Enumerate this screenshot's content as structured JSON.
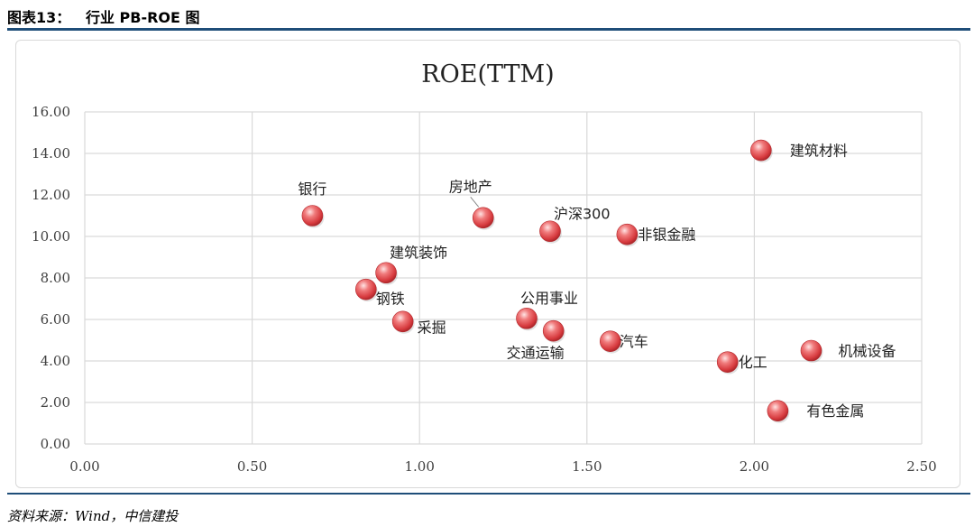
{
  "header": {
    "title": "图表13：   行业 PB-ROE 图"
  },
  "footer": {
    "source": "资料来源：Wind，中信建投"
  },
  "chart_data": {
    "type": "scatter",
    "title": "ROE(TTM)",
    "xlabel": "",
    "ylabel": "",
    "xlim": [
      0,
      2.5
    ],
    "ylim": [
      0,
      16
    ],
    "x_ticks": [
      "0.00",
      "0.50",
      "1.00",
      "1.50",
      "2.00",
      "2.50"
    ],
    "y_ticks": [
      "0.00",
      "2.00",
      "4.00",
      "6.00",
      "8.00",
      "10.00",
      "12.00",
      "14.00",
      "16.00"
    ],
    "grid": true,
    "marker_color": "#e8585a",
    "points": [
      {
        "label": "银行",
        "x": 0.68,
        "y": 11.0
      },
      {
        "label": "房地产",
        "x": 1.19,
        "y": 10.9
      },
      {
        "label": "沪深300",
        "x": 1.39,
        "y": 10.25
      },
      {
        "label": "非银金融",
        "x": 1.62,
        "y": 10.1
      },
      {
        "label": "建筑材料",
        "x": 2.02,
        "y": 14.15
      },
      {
        "label": "建筑装饰",
        "x": 0.9,
        "y": 8.25
      },
      {
        "label": "钢铁",
        "x": 0.84,
        "y": 7.45
      },
      {
        "label": "采掘",
        "x": 0.95,
        "y": 5.9
      },
      {
        "label": "公用事业",
        "x": 1.32,
        "y": 6.05
      },
      {
        "label": "交通运输",
        "x": 1.4,
        "y": 5.45
      },
      {
        "label": "汽车",
        "x": 1.57,
        "y": 4.95
      },
      {
        "label": "化工",
        "x": 1.92,
        "y": 3.95
      },
      {
        "label": "机械设备",
        "x": 2.17,
        "y": 4.5
      },
      {
        "label": "有色金属",
        "x": 2.07,
        "y": 1.6
      }
    ]
  }
}
